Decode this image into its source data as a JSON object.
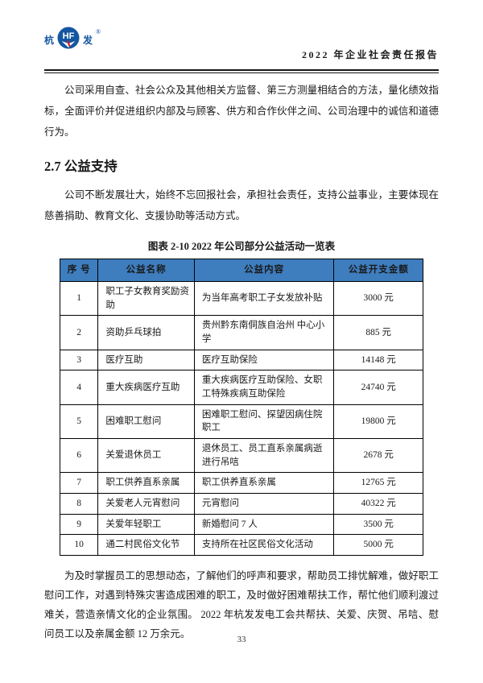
{
  "colors": {
    "table_header_bg": "#3E7DBE",
    "logo_blue": "#1456A0",
    "logo_red": "#CC2222",
    "text": "#1A1A1A"
  },
  "header": {
    "logo_left_char": "杭",
    "logo_monogram": "HF",
    "logo_right_char": "发",
    "logo_reg_mark": "®",
    "title": "2022 年企业社会责任报告"
  },
  "body": {
    "p1": "公司采用自查、社会公众及其他相关方监督、第三方测量相结合的方法，量化绩效指标，全面评价并促进组织内部及与顾客、供方和合作伙伴之间、公司治理中的诚信和道德行为。",
    "section_heading": "2.7 公益支持",
    "p2": "公司不断发展壮大，始终不忘回报社会，承担社会责任，支持公益事业，主要体现在慈善捐助、教育文化、支援协助等活动方式。",
    "p3": "为及时掌握员工的思想动态，了解他们的呼声和要求，帮助员工排忧解难，做好职工慰问工作，对遇到特殊灾害造成困难的职工，及时做好困难帮扶工作，帮忙他们顺利渡过难关，营造亲情文化的企业氛围。 2022 年杭发发电工会共帮扶、关爱、庆贺、吊唁、慰问员工以及亲属金额 12 万余元。"
  },
  "table": {
    "caption": "图表 2-10  2022 年公司部分公益活动一览表",
    "headers": [
      "序 号",
      "公益名称",
      "公益内容",
      "公益开支金额"
    ],
    "rows": [
      [
        "1",
        "职工子女教育奖励资助",
        "为当年高考职工子女发放补贴",
        "3000 元"
      ],
      [
        "2",
        "资助乒乓球拍",
        "贵州黔东南侗族自治州 中心小学",
        "885 元"
      ],
      [
        "3",
        "医疗互助",
        "医疗互助保险",
        "14148 元"
      ],
      [
        "4",
        "重大疾病医疗互助",
        "重大疾病医疗互助保险、女职工特殊疾病互助保险",
        "24740 元"
      ],
      [
        "5",
        "困难职工慰问",
        "困难职工慰问、探望因病住院职工",
        "19800 元"
      ],
      [
        "6",
        "关爱退休员工",
        "退休员工、员工直系亲属病逝进行吊唁",
        "2678 元"
      ],
      [
        "7",
        "职工供养直系亲属",
        "职工供养直系亲属",
        "12765 元"
      ],
      [
        "8",
        "关爱老人元宵慰问",
        "元宵慰问",
        "40322 元"
      ],
      [
        "9",
        "关爱年轻职工",
        "新婚慰问 7 人",
        "3500 元"
      ],
      [
        "10",
        "通二村民俗文化节",
        "支持所在社区民俗文化活动",
        "5000 元"
      ]
    ]
  },
  "footer": {
    "page_number": "33"
  }
}
